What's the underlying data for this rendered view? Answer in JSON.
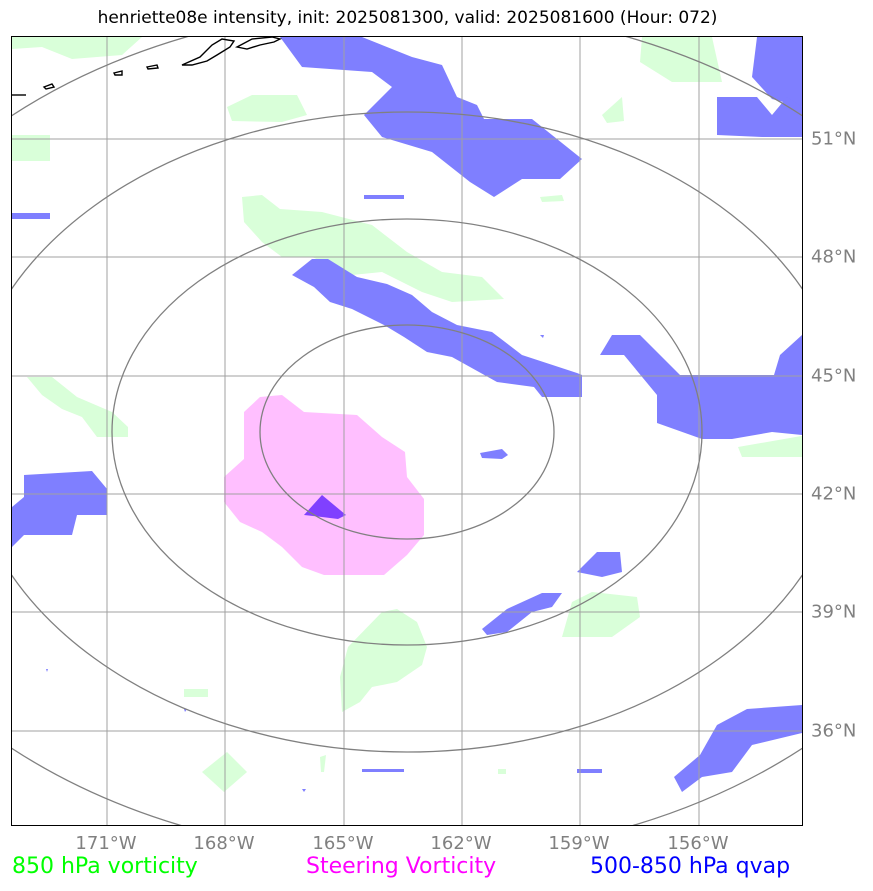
{
  "title": "henriette08e intensity, init: 2025081300, valid: 2025081600 (Hour: 072)",
  "lat_labels": [
    "51°N",
    "48°N",
    "45°N",
    "42°N",
    "39°N",
    "36°N"
  ],
  "lon_labels": [
    "171°W",
    "168°W",
    "165°W",
    "162°W",
    "159°W",
    "156°W"
  ],
  "legend": [
    {
      "label": "850 hPa vorticity",
      "color": "#00ff00"
    },
    {
      "label": "Steering Vorticity",
      "color": "#ff00ff"
    },
    {
      "label": "500-850 hPa qvap",
      "color": "#0000ff"
    }
  ],
  "colors": {
    "vorticity_850_fill": "#d9ffd9",
    "steering_vorticity_fill": "#ffbfff",
    "qvap_fill": "#7f7fff",
    "overlap_fill": "#8040ff",
    "grid": "#a0a0a0",
    "range_rings": "#808080",
    "coastline": "#000000"
  }
}
